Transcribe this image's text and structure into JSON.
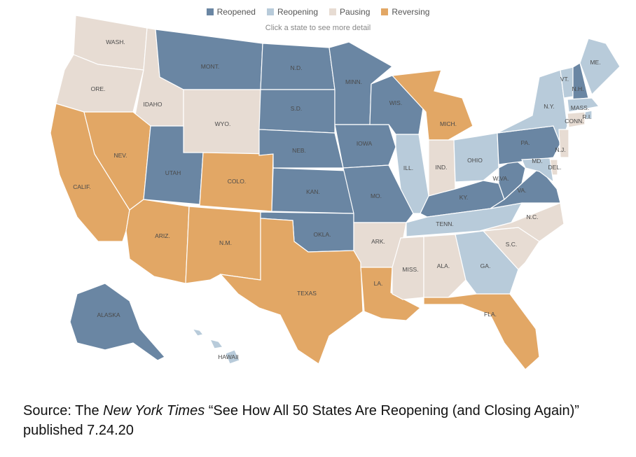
{
  "legend": {
    "items": [
      {
        "label": "Reopened",
        "color": "#6a86a3"
      },
      {
        "label": "Reopening",
        "color": "#b8cbda"
      },
      {
        "label": "Pausing",
        "color": "#e7dcd3"
      },
      {
        "label": "Reversing",
        "color": "#e2a765"
      }
    ]
  },
  "hint": "Click a state to see more detail",
  "states": [
    {
      "abbr": "WASH.",
      "status": "Pausing"
    },
    {
      "abbr": "ORE.",
      "status": "Pausing"
    },
    {
      "abbr": "CALIF.",
      "status": "Reversing"
    },
    {
      "abbr": "IDAHO",
      "status": "Pausing"
    },
    {
      "abbr": "NEV.",
      "status": "Reversing"
    },
    {
      "abbr": "MONT.",
      "status": "Reopened"
    },
    {
      "abbr": "WYO.",
      "status": "Pausing"
    },
    {
      "abbr": "UTAH",
      "status": "Reopened"
    },
    {
      "abbr": "ARIZ.",
      "status": "Reversing"
    },
    {
      "abbr": "COLO.",
      "status": "Reversing"
    },
    {
      "abbr": "N.M.",
      "status": "Reversing"
    },
    {
      "abbr": "N.D.",
      "status": "Reopened"
    },
    {
      "abbr": "S.D.",
      "status": "Reopened"
    },
    {
      "abbr": "NEB.",
      "status": "Reopened"
    },
    {
      "abbr": "KAN.",
      "status": "Reopened"
    },
    {
      "abbr": "OKLA.",
      "status": "Reopened"
    },
    {
      "abbr": "TEXAS",
      "status": "Reversing"
    },
    {
      "abbr": "MINN.",
      "status": "Reopened"
    },
    {
      "abbr": "IOWA",
      "status": "Reopened"
    },
    {
      "abbr": "MO.",
      "status": "Reopened"
    },
    {
      "abbr": "ARK.",
      "status": "Pausing"
    },
    {
      "abbr": "LA.",
      "status": "Reversing"
    },
    {
      "abbr": "WIS.",
      "status": "Reopened"
    },
    {
      "abbr": "ILL.",
      "status": "Reopening"
    },
    {
      "abbr": "MICH.",
      "status": "Reversing"
    },
    {
      "abbr": "IND.",
      "status": "Pausing"
    },
    {
      "abbr": "OHIO",
      "status": "Reopening"
    },
    {
      "abbr": "KY.",
      "status": "Reopened"
    },
    {
      "abbr": "TENN.",
      "status": "Reopening"
    },
    {
      "abbr": "MISS.",
      "status": "Pausing"
    },
    {
      "abbr": "ALA.",
      "status": "Pausing"
    },
    {
      "abbr": "GA.",
      "status": "Reopening"
    },
    {
      "abbr": "FLA.",
      "status": "Reversing"
    },
    {
      "abbr": "S.C.",
      "status": "Pausing"
    },
    {
      "abbr": "N.C.",
      "status": "Pausing"
    },
    {
      "abbr": "VA.",
      "status": "Reopened"
    },
    {
      "abbr": "W.VA.",
      "status": "Reopened"
    },
    {
      "abbr": "PA.",
      "status": "Reopened"
    },
    {
      "abbr": "N.Y.",
      "status": "Reopening"
    },
    {
      "abbr": "VT.",
      "status": "Reopening"
    },
    {
      "abbr": "N.H.",
      "status": "Reopened"
    },
    {
      "abbr": "ME.",
      "status": "Reopening"
    },
    {
      "abbr": "MASS.",
      "status": "Reopening"
    },
    {
      "abbr": "R.I.",
      "status": "Reopening"
    },
    {
      "abbr": "CONN.",
      "status": "Pausing"
    },
    {
      "abbr": "N.J.",
      "status": "Pausing"
    },
    {
      "abbr": "DEL.",
      "status": "Pausing"
    },
    {
      "abbr": "MD.",
      "status": "Reopening"
    },
    {
      "abbr": "ALASKA",
      "status": "Reopened"
    },
    {
      "abbr": "HAWAII",
      "status": "Reopening"
    }
  ],
  "source": {
    "prefix": "Source: The ",
    "publication": "New York Times",
    "title": " “See How All 50 States Are Reopening (and Closing Again)”",
    "published": "published 7.24.20"
  }
}
